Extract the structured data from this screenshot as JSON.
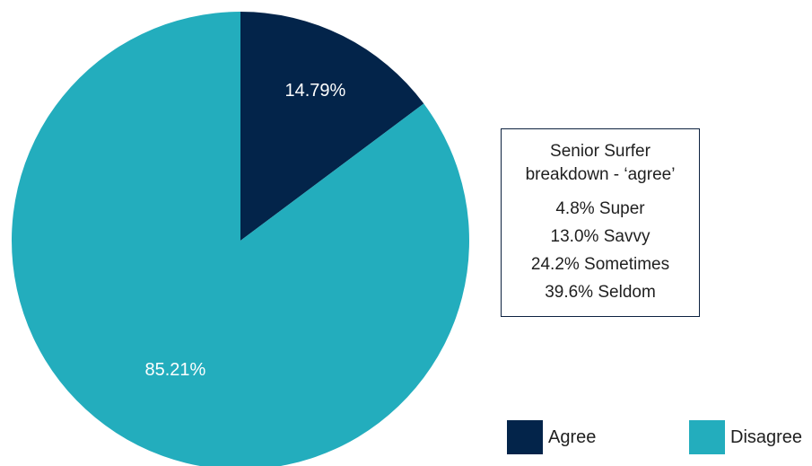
{
  "chart_data": {
    "type": "pie",
    "slices": [
      {
        "label": "Agree",
        "value": 14.79,
        "data_label": "14.79%",
        "color": "#03244a"
      },
      {
        "label": "Disagree",
        "value": 85.21,
        "data_label": "85.21%",
        "color": "#23adbd"
      }
    ],
    "legend": {
      "placement": "bottom-right",
      "entries": [
        "Agree",
        "Disagree"
      ]
    }
  },
  "info_box": {
    "title_line1": "Senior Surfer",
    "title_line2": "breakdown - ‘agree’",
    "lines": [
      "4.8% Super",
      "13.0% Savvy",
      "24.2% Sometimes",
      "39.6% Seldom"
    ]
  },
  "legend": {
    "agree_label": "Agree",
    "disagree_label": "Disagree",
    "agree_color": "#03244a",
    "disagree_color": "#23adbd"
  }
}
